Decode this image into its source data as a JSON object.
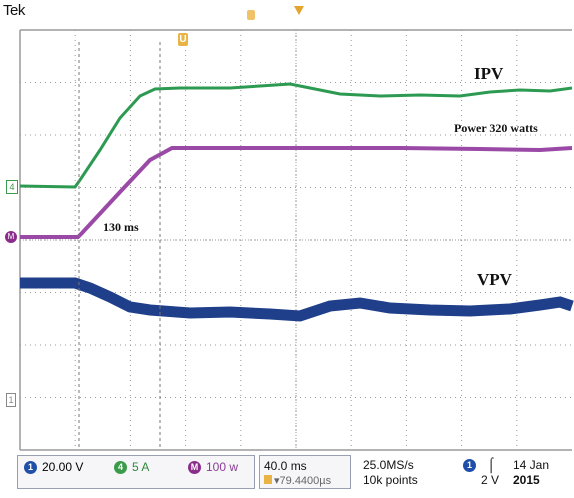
{
  "brand": "Tek",
  "markers": {
    "trigger_marker": "T",
    "cursor_marker": "U",
    "ch4_marker": "4",
    "math_marker": "M",
    "ch1_marker": "1"
  },
  "labels": {
    "ipv": "IPV",
    "power": "Power  320 watts",
    "time_rise": "130 ms",
    "vpv": "VPV"
  },
  "colors": {
    "current_trace": "#2d9a52",
    "power_trace": "#9a4aa6",
    "voltage_trace": "#1f3f8a",
    "grid": "#9a9a9a",
    "ch1": "#1f4fa8",
    "ch4": "#3a9b4a",
    "math": "#9a4aa6"
  },
  "status": {
    "ch1": {
      "icon": "1",
      "value": "20.00 V"
    },
    "ch4": {
      "icon": "4",
      "value": "5 A"
    },
    "math": {
      "icon": "M",
      "value": "100 w"
    },
    "timebase": "40.0 ms",
    "trigger_offset": "▾79.4400µs",
    "sample_rate": "25.0MS/s",
    "record_length": "10k points",
    "trigger_ch": "1",
    "trigger_slope": "⌠",
    "trigger_level": "2 V",
    "date_day": "14 Jan",
    "date_year": "2015"
  }
}
